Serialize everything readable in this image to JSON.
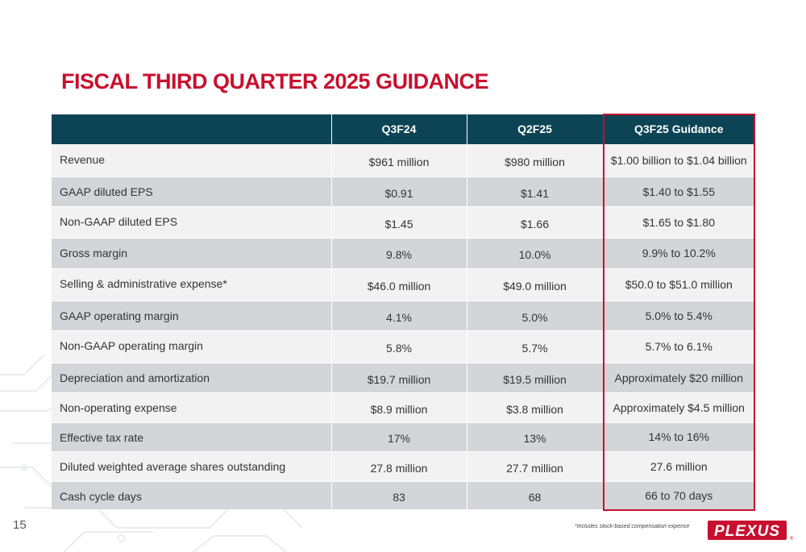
{
  "slide": {
    "title": "FISCAL THIRD QUARTER 2025 GUIDANCE",
    "page_number": "15",
    "footnote": "*Includes stock-based compensation expense",
    "logo_text": "PLEXUS",
    "logo_mark": "®"
  },
  "colors": {
    "accent_red": "#c8102e",
    "header_teal": "#0d4455",
    "row_light": "#f2f2f2",
    "row_dark": "#d3d6d9"
  },
  "table": {
    "headers": [
      "",
      "Q3F24",
      "Q2F25",
      "Q3F25 Guidance"
    ],
    "rows": [
      {
        "label": "Revenue",
        "q3f24": "$961 million",
        "q2f25": "$980 million",
        "guidance": "$1.00 billion to $1.04 billion"
      },
      {
        "label": "GAAP diluted EPS",
        "q3f24": "$0.91",
        "q2f25": "$1.41",
        "guidance": "$1.40 to $1.55"
      },
      {
        "label": "Non-GAAP diluted EPS",
        "q3f24": "$1.45",
        "q2f25": "$1.66",
        "guidance": "$1.65 to $1.80"
      },
      {
        "label": "Gross margin",
        "q3f24": "9.8%",
        "q2f25": "10.0%",
        "guidance": "9.9% to 10.2%"
      },
      {
        "label": "Selling & administrative expense*",
        "q3f24": "$46.0 million",
        "q2f25": "$49.0 million",
        "guidance": "$50.0 to $51.0 million"
      },
      {
        "label": "GAAP operating margin",
        "q3f24": "4.1%",
        "q2f25": "5.0%",
        "guidance": "5.0% to 5.4%"
      },
      {
        "label": "Non-GAAP operating margin",
        "q3f24": "5.8%",
        "q2f25": "5.7%",
        "guidance": "5.7% to 6.1%"
      },
      {
        "label": "Depreciation and amortization",
        "q3f24": "$19.7 million",
        "q2f25": "$19.5 million",
        "guidance": "Approximately $20 million"
      },
      {
        "label": "Non-operating expense",
        "q3f24": "$8.9 million",
        "q2f25": "$3.8 million",
        "guidance": "Approximately $4.5 million"
      },
      {
        "label": "Effective tax rate",
        "q3f24": "17%",
        "q2f25": "13%",
        "guidance": "14% to 16%"
      },
      {
        "label": "Diluted weighted average shares outstanding",
        "q3f24": "27.8 million",
        "q2f25": "27.7 million",
        "guidance": "27.6 million"
      },
      {
        "label": "Cash cycle days",
        "q3f24": "83",
        "q2f25": "68",
        "guidance": "66 to 70 days"
      }
    ]
  }
}
